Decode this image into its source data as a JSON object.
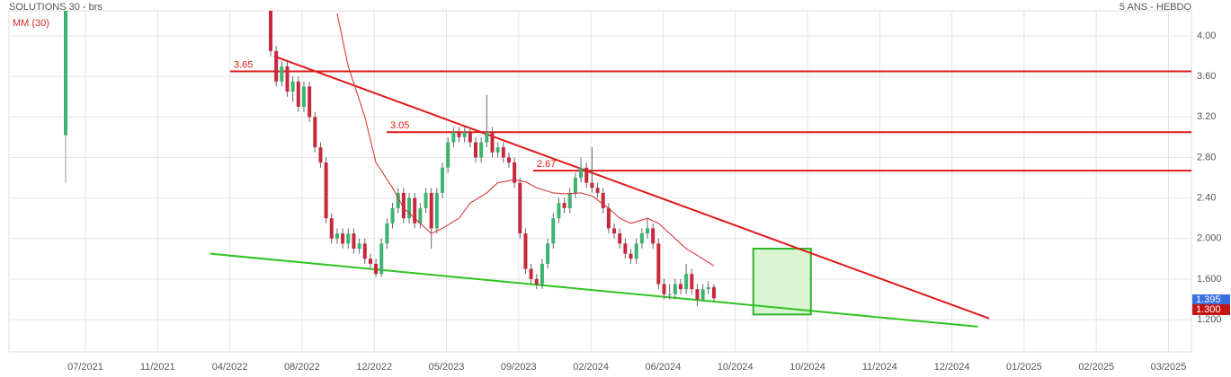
{
  "chart_data": {
    "type": "candlestick",
    "title": "SOLUTIONS 30 - brs",
    "subtitle": "5 ANS - HEBDO",
    "categories": [
      "07/2021",
      "11/2021",
      "04/2022",
      "08/2022",
      "12/2022",
      "05/2023",
      "09/2023",
      "02/2024",
      "06/2024",
      "10/2024",
      "10/2024",
      "11/2024",
      "12/2024",
      "01/2025",
      "02/2025",
      "03/2025"
    ],
    "ylim": [
      0.881,
      4.248
    ],
    "yticks": [
      {
        "value": 4,
        "label": "4.00"
      },
      {
        "value": 3.6,
        "label": "3.60"
      },
      {
        "value": 3.2,
        "label": "3.20"
      },
      {
        "value": 2.8,
        "label": "2.80"
      },
      {
        "value": 2.4,
        "label": "2.40"
      },
      {
        "value": 2,
        "label": "2.000"
      },
      {
        "value": 1.6,
        "label": "1.600"
      },
      {
        "value": 1.2,
        "label": "1.200"
      }
    ],
    "grid": true,
    "up_color": "#3cb371",
    "down_color": "#c8283c",
    "candles": [
      [
        3.02,
        4.25,
        2.55,
        4.25
      ],
      null,
      null,
      null,
      null,
      null,
      null,
      null,
      null,
      null,
      null,
      null,
      null,
      null,
      null,
      null,
      null,
      null,
      null,
      null,
      null,
      null,
      null,
      null,
      null,
      null,
      null,
      null,
      null,
      null,
      null,
      null,
      null,
      null,
      null,
      null,
      null,
      [
        4.25,
        4.3,
        3.8,
        3.85
      ],
      [
        3.85,
        3.9,
        3.5,
        3.55
      ],
      [
        3.55,
        3.75,
        3.5,
        3.7
      ],
      [
        3.7,
        3.75,
        3.4,
        3.45
      ],
      [
        3.45,
        3.6,
        3.35,
        3.55
      ],
      [
        3.55,
        3.6,
        3.25,
        3.3
      ],
      [
        3.3,
        3.55,
        3.25,
        3.5
      ],
      [
        3.5,
        3.55,
        3.15,
        3.2
      ],
      [
        3.2,
        3.25,
        2.85,
        2.9
      ],
      [
        2.9,
        2.95,
        2.7,
        2.75
      ],
      [
        2.75,
        2.8,
        2.15,
        2.2
      ],
      [
        2.2,
        2.25,
        1.95,
        2.0
      ],
      [
        2.0,
        2.1,
        1.95,
        2.05
      ],
      [
        2.05,
        2.1,
        1.9,
        1.95
      ],
      [
        1.95,
        2.1,
        1.9,
        2.05
      ],
      [
        2.05,
        2.1,
        1.85,
        1.9
      ],
      [
        1.9,
        2.0,
        1.85,
        1.95
      ],
      [
        1.95,
        2.0,
        1.75,
        1.8
      ],
      [
        1.8,
        1.85,
        1.7,
        1.75
      ],
      [
        1.75,
        1.8,
        1.62,
        1.65
      ],
      [
        1.65,
        2.0,
        1.62,
        1.95
      ],
      [
        1.95,
        2.2,
        1.9,
        2.15
      ],
      [
        2.15,
        2.35,
        2.1,
        2.3
      ],
      [
        2.3,
        2.5,
        2.25,
        2.45
      ],
      [
        2.45,
        2.5,
        2.15,
        2.2
      ],
      [
        2.2,
        2.45,
        2.15,
        2.4
      ],
      [
        2.4,
        2.45,
        2.1,
        2.15
      ],
      [
        2.15,
        2.35,
        2.1,
        2.3
      ],
      [
        2.3,
        2.5,
        2.25,
        2.45
      ],
      [
        2.45,
        2.5,
        1.9,
        2.1
      ],
      [
        2.1,
        2.5,
        2.05,
        2.45
      ],
      [
        2.45,
        2.75,
        2.4,
        2.7
      ],
      [
        2.7,
        3.0,
        2.65,
        2.95
      ],
      [
        2.95,
        3.1,
        2.9,
        3.05
      ],
      [
        3.05,
        3.1,
        2.95,
        3.0
      ],
      [
        3.0,
        3.1,
        2.95,
        3.05
      ],
      [
        3.05,
        3.1,
        2.9,
        2.95
      ],
      [
        2.95,
        3.0,
        2.75,
        2.8
      ],
      [
        2.8,
        3.0,
        2.75,
        2.95
      ],
      [
        2.95,
        3.42,
        2.9,
        3.05
      ],
      [
        3.05,
        3.1,
        2.8,
        2.85
      ],
      [
        2.85,
        2.95,
        2.8,
        2.9
      ],
      [
        2.9,
        2.95,
        2.75,
        2.8
      ],
      [
        2.8,
        2.85,
        2.7,
        2.75
      ],
      [
        2.75,
        2.8,
        2.5,
        2.55
      ],
      [
        2.55,
        2.6,
        2.0,
        2.05
      ],
      [
        2.05,
        2.1,
        1.65,
        1.7
      ],
      [
        1.7,
        1.75,
        1.55,
        1.6
      ],
      [
        1.6,
        1.65,
        1.5,
        1.55
      ],
      [
        1.55,
        1.8,
        1.5,
        1.75
      ],
      [
        1.75,
        2.0,
        1.7,
        1.95
      ],
      [
        1.95,
        2.25,
        1.9,
        2.2
      ],
      [
        2.2,
        2.4,
        2.15,
        2.35
      ],
      [
        2.35,
        2.4,
        2.25,
        2.3
      ],
      [
        2.3,
        2.5,
        2.25,
        2.45
      ],
      [
        2.45,
        2.65,
        2.4,
        2.6
      ],
      [
        2.6,
        2.8,
        2.55,
        2.7
      ],
      [
        2.7,
        2.75,
        2.5,
        2.55
      ],
      [
        2.55,
        2.9,
        2.45,
        2.5
      ],
      [
        2.5,
        2.55,
        2.4,
        2.45
      ],
      [
        2.45,
        2.5,
        2.25,
        2.3
      ],
      [
        2.3,
        2.35,
        2.05,
        2.1
      ],
      [
        2.1,
        2.15,
        2.0,
        2.05
      ],
      [
        2.05,
        2.1,
        1.9,
        1.95
      ],
      [
        1.95,
        2.0,
        1.8,
        1.85
      ],
      [
        1.85,
        1.9,
        1.75,
        1.8
      ],
      [
        1.8,
        2.0,
        1.75,
        1.95
      ],
      [
        1.95,
        2.1,
        1.9,
        2.05
      ],
      [
        2.05,
        2.2,
        2.0,
        2.1
      ],
      [
        2.1,
        2.15,
        1.9,
        1.95
      ],
      [
        1.95,
        2.0,
        1.5,
        1.55
      ],
      [
        1.55,
        1.6,
        1.4,
        1.45
      ],
      [
        1.45,
        1.55,
        1.4,
        1.45
      ],
      [
        1.45,
        1.6,
        1.4,
        1.55
      ],
      [
        1.55,
        1.6,
        1.45,
        1.5
      ],
      [
        1.5,
        1.75,
        1.45,
        1.65
      ],
      [
        1.65,
        1.7,
        1.45,
        1.5
      ],
      [
        1.5,
        1.55,
        1.33,
        1.4
      ],
      [
        1.4,
        1.55,
        1.38,
        1.5
      ],
      [
        1.5,
        1.58,
        1.45,
        1.52
      ],
      [
        1.52,
        1.55,
        1.38,
        1.41
      ]
    ],
    "ma": {
      "name": "MM (30)",
      "color": "#d42a2a",
      "x": [
        49,
        51,
        54,
        56,
        59,
        61,
        64,
        66,
        68,
        71,
        73,
        76,
        78,
        81,
        83,
        85,
        88,
        90,
        93,
        95,
        98,
        100,
        102,
        105,
        107,
        110,
        112,
        115,
        117
      ],
      "values": [
        4.22,
        3.7,
        3.2,
        2.75,
        2.5,
        2.3,
        2.15,
        2.05,
        2.1,
        2.2,
        2.35,
        2.45,
        2.55,
        2.58,
        2.56,
        2.5,
        2.45,
        2.44,
        2.45,
        2.42,
        2.3,
        2.2,
        2.15,
        2.2,
        2.15,
        2.0,
        1.9,
        1.8,
        1.73
      ]
    },
    "levels": {
      "color": "#e01818",
      "values": [
        3.65,
        3.05,
        2.67
      ]
    },
    "trendlines": [
      {
        "color": "#e01818",
        "x": [
          37.6,
          166.7
        ],
        "values": [
          3.8,
          1.21
        ]
      },
      {
        "color": "#2ec41e",
        "x": [
          26.1,
          164.6
        ],
        "values": [
          1.85,
          1.13
        ]
      }
    ],
    "box": {
      "color": "#2fb52a",
      "x": [
        124.1,
        134.5
      ],
      "values": [
        1.9,
        1.25
      ]
    },
    "price_labels": [
      {
        "value": 1.395,
        "label": "1.395",
        "color": "#3a6fe0"
      },
      {
        "value": 1.3,
        "label": "1.300",
        "color": "#c41414"
      }
    ]
  }
}
